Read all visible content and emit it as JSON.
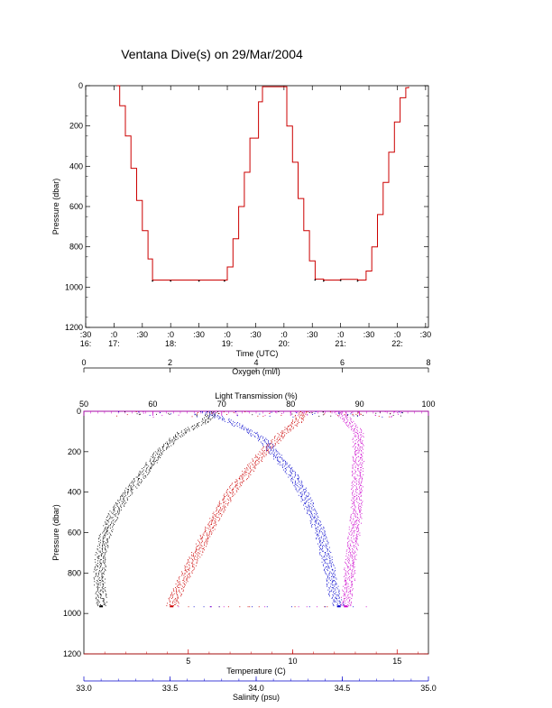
{
  "title": "Ventana Dive(s) on 29/Mar/2004",
  "chart_data": [
    {
      "type": "line",
      "ylabel": "Pressure (dbar)",
      "xlabel": "Time (UTC)",
      "ylim": [
        1200,
        0
      ],
      "xlim": [
        16.5,
        22.55
      ],
      "y_ticks": [
        0,
        200,
        400,
        600,
        800,
        1000,
        1200
      ],
      "x_ticks": [
        {
          "t": 16.5,
          "min": ":30",
          "hour": "16:"
        },
        {
          "t": 17.0,
          "min": ":0",
          "hour": "17:"
        },
        {
          "t": 17.5,
          "min": ":30",
          "hour": ""
        },
        {
          "t": 18.0,
          "min": ":0",
          "hour": "18:"
        },
        {
          "t": 18.5,
          "min": ":30",
          "hour": ""
        },
        {
          "t": 19.0,
          "min": ":0",
          "hour": "19:"
        },
        {
          "t": 19.5,
          "min": ":30",
          "hour": ""
        },
        {
          "t": 20.0,
          "min": ":0",
          "hour": "20:"
        },
        {
          "t": 20.5,
          "min": ":30",
          "hour": ""
        },
        {
          "t": 21.0,
          "min": ":0",
          "hour": "21:"
        },
        {
          "t": 21.5,
          "min": ":30",
          "hour": ""
        },
        {
          "t": 22.0,
          "min": ":0",
          "hour": "22:"
        },
        {
          "t": 22.5,
          "min": ":30",
          "hour": ""
        }
      ],
      "series": [
        {
          "color": "#cc0000",
          "x": [
            17.05,
            17.1,
            17.2,
            17.3,
            17.4,
            17.5,
            17.6,
            17.68,
            18.0,
            18.5,
            18.95,
            19.0,
            19.1,
            19.2,
            19.3,
            19.4,
            19.55,
            19.62,
            19.95,
            20.05,
            20.15,
            20.25,
            20.35,
            20.45,
            20.55,
            20.7,
            21.0,
            21.3,
            21.45,
            21.55,
            21.65,
            21.75,
            21.85,
            21.95,
            22.05,
            22.15,
            22.2
          ],
          "y": [
            0,
            100,
            250,
            410,
            570,
            720,
            860,
            965,
            965,
            965,
            965,
            900,
            760,
            600,
            430,
            260,
            80,
            5,
            5,
            200,
            380,
            560,
            720,
            870,
            960,
            965,
            962,
            965,
            920,
            800,
            640,
            480,
            330,
            180,
            60,
            10,
            5
          ]
        }
      ]
    },
    {
      "type": "scatter",
      "ylabel": "Pressure (dbar)",
      "ylim": [
        1200,
        0
      ],
      "y_ticks": [
        0,
        200,
        400,
        600,
        800,
        1000,
        1200
      ],
      "axes": [
        {
          "name": "oxygen",
          "label": "Oxygen (ml/l)",
          "color": "#000000",
          "range": [
            0,
            8
          ],
          "ticks": [
            0,
            2,
            4,
            6,
            8
          ]
        },
        {
          "name": "light",
          "label": "Light Transmission (%)",
          "color": "#cc00cc",
          "range": [
            50,
            100
          ],
          "ticks": [
            50,
            60,
            70,
            80,
            90,
            100
          ]
        },
        {
          "name": "temperature",
          "label": "Temperature (C)",
          "color": "#cc0000",
          "range": [
            0,
            16.5
          ],
          "ticks": [
            5,
            10,
            15
          ]
        },
        {
          "name": "salinity",
          "label": "Salinity (psu)",
          "color": "#0000cc",
          "range": [
            33.0,
            35.0
          ],
          "ticks": [
            33.0,
            33.5,
            34.0,
            34.5,
            35.0
          ]
        }
      ],
      "series": [
        {
          "axis": "oxygen",
          "color": "#000000",
          "profile": [
            [
              0,
              3.0
            ],
            [
              50,
              2.8
            ],
            [
              100,
              2.3
            ],
            [
              150,
              2.0
            ],
            [
              200,
              1.75
            ],
            [
              300,
              1.4
            ],
            [
              400,
              1.0
            ],
            [
              500,
              0.7
            ],
            [
              600,
              0.5
            ],
            [
              700,
              0.4
            ],
            [
              800,
              0.35
            ],
            [
              900,
              0.38
            ],
            [
              965,
              0.4
            ]
          ]
        },
        {
          "axis": "temperature",
          "color": "#cc0000",
          "profile": [
            [
              0,
              10.5
            ],
            [
              50,
              10.2
            ],
            [
              100,
              9.6
            ],
            [
              150,
              9.1
            ],
            [
              200,
              8.6
            ],
            [
              300,
              7.8
            ],
            [
              400,
              7.0
            ],
            [
              500,
              6.4
            ],
            [
              600,
              5.9
            ],
            [
              700,
              5.4
            ],
            [
              800,
              4.9
            ],
            [
              900,
              4.4
            ],
            [
              965,
              4.2
            ]
          ]
        },
        {
          "axis": "salinity",
          "color": "#0000cc",
          "profile": [
            [
              0,
              33.7
            ],
            [
              50,
              33.85
            ],
            [
              100,
              33.97
            ],
            [
              150,
              34.05
            ],
            [
              200,
              34.1
            ],
            [
              300,
              34.2
            ],
            [
              400,
              34.27
            ],
            [
              500,
              34.32
            ],
            [
              600,
              34.37
            ],
            [
              700,
              34.4
            ],
            [
              800,
              34.43
            ],
            [
              900,
              34.45
            ],
            [
              965,
              34.48
            ]
          ]
        },
        {
          "axis": "light",
          "color": "#cc00cc",
          "profile": [
            [
              0,
              87
            ],
            [
              100,
              89.7
            ],
            [
              200,
              89.8
            ],
            [
              300,
              89.7
            ],
            [
              400,
              89.6
            ],
            [
              500,
              89.5
            ],
            [
              600,
              89.2
            ],
            [
              700,
              88.8
            ],
            [
              800,
              88.5
            ],
            [
              900,
              88.2
            ],
            [
              965,
              88
            ]
          ]
        }
      ]
    }
  ]
}
